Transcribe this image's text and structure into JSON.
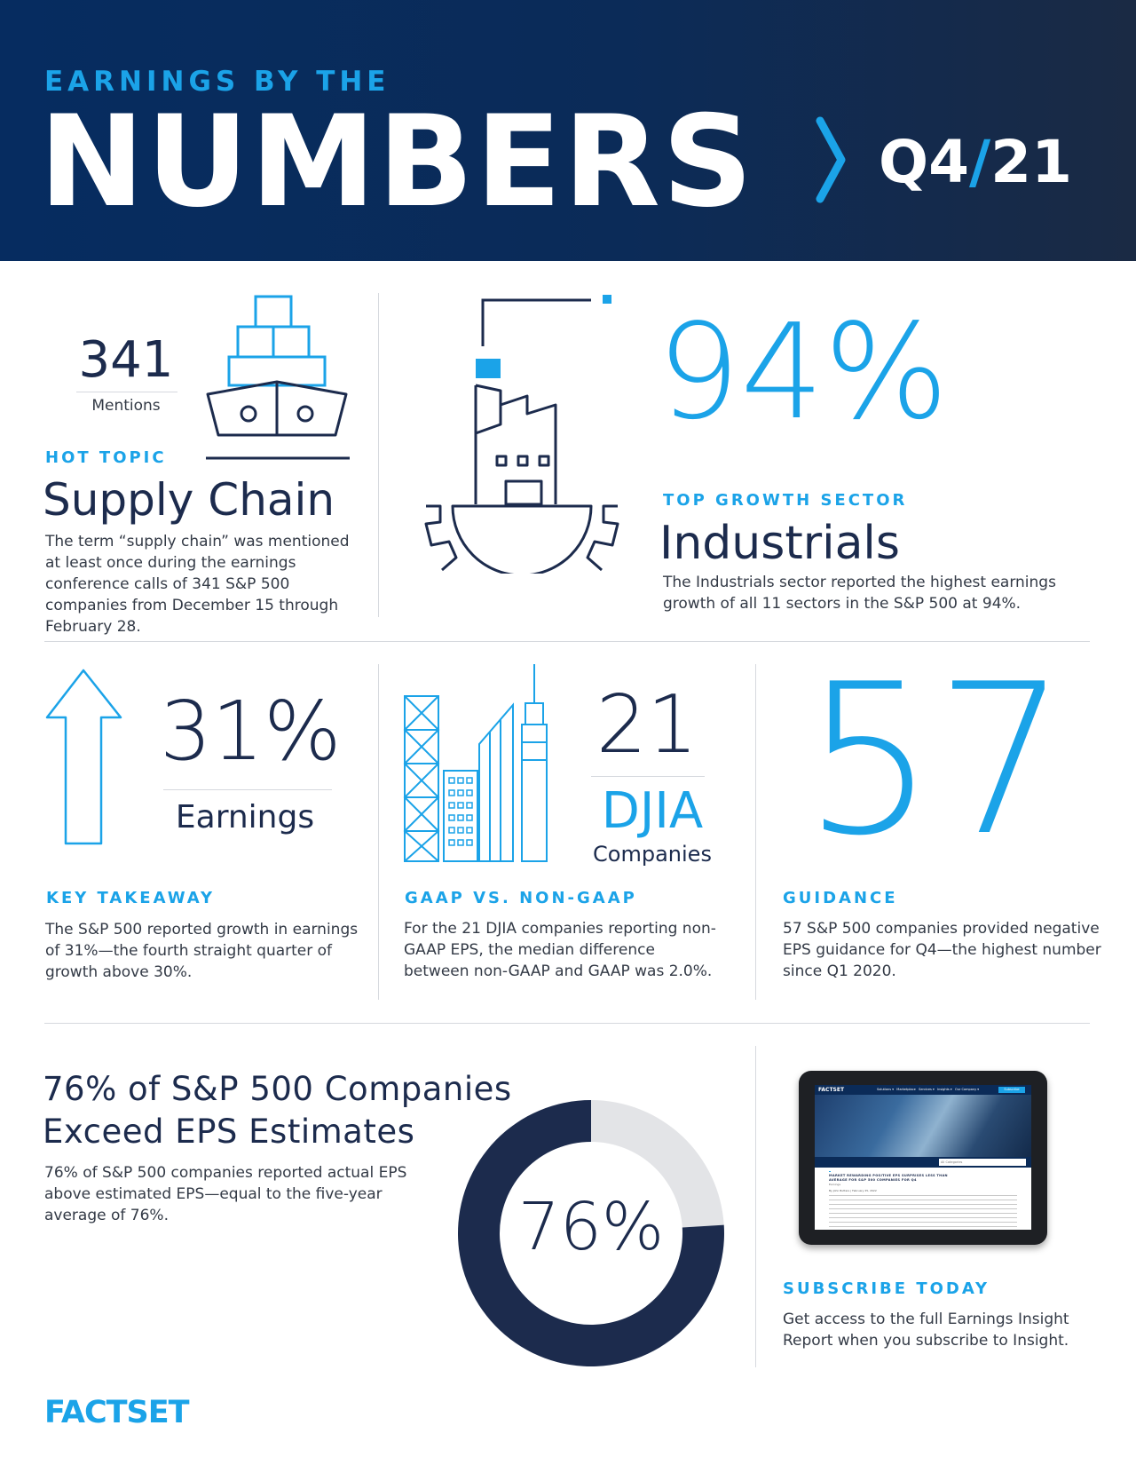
{
  "header": {
    "kicker": "EARNINGS BY THE",
    "title": "NUMBERS",
    "quarter_q": "Q4",
    "quarter_slash": "/",
    "quarter_year": "21"
  },
  "supply_chain": {
    "value": "341",
    "unit": "Mentions",
    "label": "HOT TOPIC",
    "heading": "Supply Chain",
    "text": "The term “supply chain” was mentioned at least once during the earnings conference calls of 341 S&P 500 companies from December 15 through February 28."
  },
  "industrials": {
    "value": "94%",
    "label": "TOP GROWTH SECTOR",
    "heading": "Industrials",
    "text": "The Industrials sector reported the highest earnings growth of all 11 sectors in the S&P 500 at 94%."
  },
  "earnings": {
    "value": "31%",
    "unit": "Earnings",
    "label": "KEY TAKEAWAY",
    "text": "The S&P 500 reported growth in earnings of 31%—the fourth straight quarter of growth above 30%."
  },
  "gaap": {
    "value": "21",
    "unit_main": "DJIA",
    "unit_sub": "Companies",
    "label": "GAAP VS. NON-GAAP",
    "text": "For the 21 DJIA companies reporting non-GAAP EPS, the median difference between non-GAAP and GAAP was 2.0%."
  },
  "guidance": {
    "value": "57",
    "label": "GUIDANCE",
    "text": "57 S&P 500 companies provided negative EPS guidance for Q4—the highest number since Q1 2020."
  },
  "eps": {
    "heading_line1": "76% of S&P 500 Companies",
    "heading_line2": "Exceed EPS Estimates",
    "text": "76% of S&P 500 companies reported actual EPS above estimated EPS—equal to the five-year average of 76%.",
    "donut_label": "76%",
    "donut_percent": 76,
    "colors": {
      "filled": "#1c2b4d",
      "remaining": "#e3e4e7"
    }
  },
  "subscribe": {
    "label": "SUBSCRIBE TODAY",
    "text": "Get access to the full Earnings Insight Report when you subscribe to Insight.",
    "tablet": {
      "logo": "FACTSET",
      "nav": [
        "Solutions ▾",
        "Marketplace",
        "Services ▾",
        "Insights ▾",
        "Our Company ▾"
      ],
      "subscribe_btn": "Subscribe",
      "search_placeholder": "All Categories",
      "article_title": "MARKET REWARDING POSITIVE EPS SURPRISES LESS THAN AVERAGE FOR S&P 500 COMPANIES FOR Q4",
      "article_sub": "Earnings",
      "byline": "By John Butters | February 25, 2022"
    }
  },
  "footer": {
    "logo": "FACTSET"
  },
  "colors": {
    "navy": "#1c2b4d",
    "accent": "#1ba3e8",
    "header": "#062c60"
  }
}
